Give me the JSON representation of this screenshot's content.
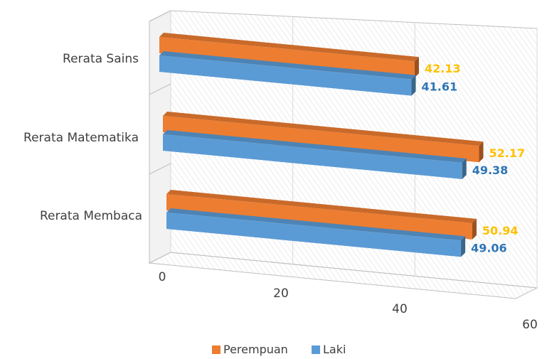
{
  "chart_data": {
    "type": "bar",
    "orientation": "horizontal",
    "three_d": true,
    "categories": [
      "Rerata Sains",
      "Rerata Matematika",
      "Rerata Membaca"
    ],
    "series": [
      {
        "name": "Perempuan",
        "values": [
          42.13,
          52.17,
          50.94
        ],
        "color": "#ED7D31",
        "label_color": "#FFC000"
      },
      {
        "name": "Laki",
        "values": [
          41.61,
          49.38,
          49.06
        ],
        "color": "#5B9BD5",
        "label_color": "#2E75B6"
      }
    ],
    "data_labels": {
      "Perempuan": [
        "42.13",
        "52.17",
        "50.94"
      ],
      "Laki": [
        "41.61",
        "49.38",
        "49.06"
      ]
    },
    "x_ticks": [
      "0",
      "20",
      "40",
      "60"
    ],
    "xlim": [
      0,
      60
    ],
    "grid": true,
    "legend_position": "bottom"
  }
}
